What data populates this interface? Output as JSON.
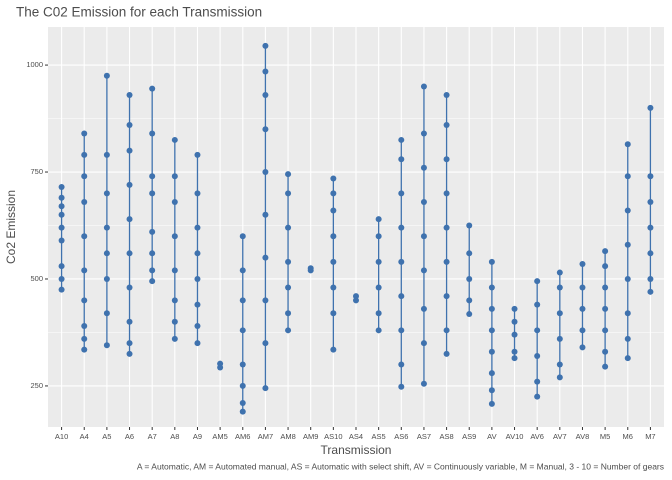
{
  "chart_data": {
    "type": "strip",
    "title": "The C02 Emission for each Transmission",
    "x_label": "Transmission",
    "y_label": "Co2 Emission",
    "caption": "A = Automatic, AM = Automated manual, AS = Automatic with select shift, AV = Continuously variable, M = Manual, 3 - 10 = Number of gears",
    "color": "#3f72ae",
    "grid": true,
    "ylim": [
      154,
      1089
    ],
    "yticks": [
      250,
      500,
      750,
      1000
    ],
    "categories": [
      "A10",
      "A4",
      "A5",
      "A6",
      "A7",
      "A8",
      "A9",
      "AM5",
      "AM6",
      "AM7",
      "AM8",
      "AM9",
      "AS10",
      "AS4",
      "AS5",
      "AS6",
      "AS7",
      "AS8",
      "AS9",
      "AV",
      "AV10",
      "AV6",
      "AV7",
      "AV8",
      "M5",
      "M6",
      "M7"
    ],
    "values": [
      [
        475,
        500,
        530,
        590,
        620,
        650,
        670,
        690,
        715
      ],
      [
        335,
        360,
        390,
        450,
        520,
        600,
        680,
        740,
        790,
        840
      ],
      [
        345,
        420,
        500,
        560,
        620,
        700,
        790,
        975
      ],
      [
        325,
        350,
        400,
        480,
        560,
        640,
        720,
        800,
        860,
        930
      ],
      [
        495,
        520,
        560,
        610,
        700,
        740,
        840,
        945
      ],
      [
        360,
        400,
        450,
        520,
        600,
        680,
        740,
        825
      ],
      [
        350,
        390,
        440,
        500,
        560,
        620,
        700,
        790
      ],
      [
        293,
        302
      ],
      [
        190,
        210,
        250,
        300,
        380,
        450,
        520,
        600
      ],
      [
        245,
        350,
        450,
        550,
        650,
        750,
        850,
        930,
        985,
        1045
      ],
      [
        380,
        420,
        480,
        540,
        620,
        700,
        745
      ],
      [
        520,
        525
      ],
      [
        335,
        420,
        480,
        540,
        600,
        660,
        700,
        735
      ],
      [
        450,
        460
      ],
      [
        380,
        420,
        480,
        540,
        600,
        640
      ],
      [
        248,
        300,
        380,
        460,
        540,
        620,
        700,
        780,
        825
      ],
      [
        255,
        350,
        430,
        520,
        600,
        680,
        760,
        840,
        950
      ],
      [
        325,
        380,
        460,
        540,
        620,
        700,
        780,
        860,
        930
      ],
      [
        418,
        450,
        500,
        560,
        625
      ],
      [
        208,
        240,
        280,
        330,
        380,
        430,
        480,
        540
      ],
      [
        315,
        330,
        370,
        400,
        430
      ],
      [
        225,
        260,
        320,
        380,
        440,
        495
      ],
      [
        270,
        300,
        360,
        420,
        480,
        515
      ],
      [
        340,
        380,
        430,
        480,
        535
      ],
      [
        295,
        330,
        380,
        430,
        480,
        530,
        565
      ],
      [
        315,
        360,
        420,
        500,
        580,
        660,
        740,
        815
      ],
      [
        470,
        500,
        560,
        620,
        680,
        740,
        900
      ]
    ]
  }
}
